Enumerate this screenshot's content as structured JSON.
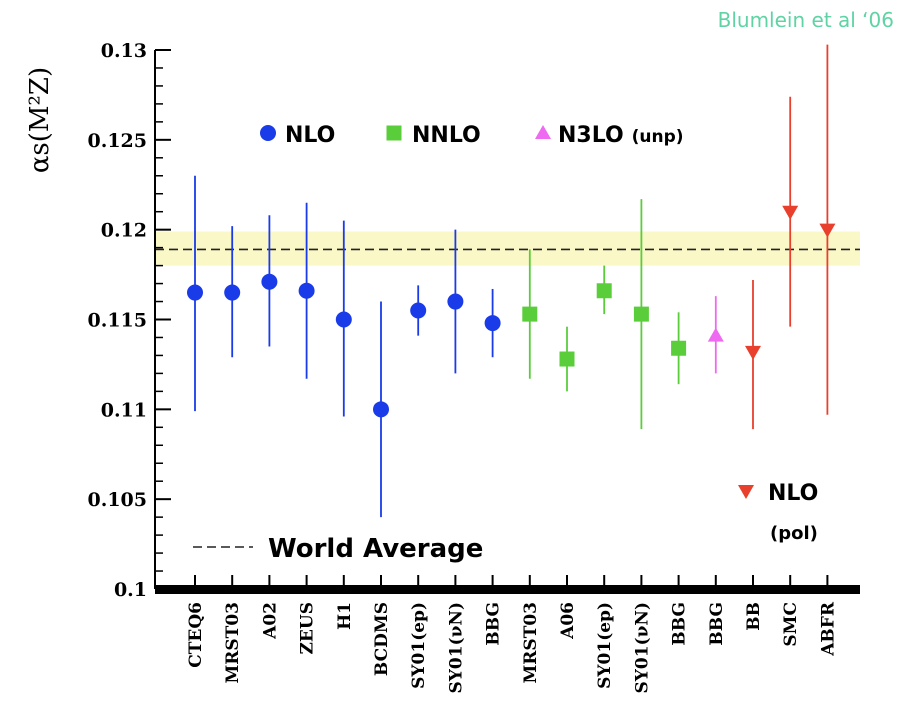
{
  "credit": "Blumlein et al ‘06",
  "chart_data": {
    "type": "scatter",
    "ylabel": "αs(M²Z)",
    "ylim": [
      0.1,
      0.13
    ],
    "yticks": [
      "0.1",
      "0.105",
      "0.11",
      "0.115",
      "0.12",
      "0.125",
      "0.13"
    ],
    "categories": [
      "CTEQ6",
      "MRST03",
      "A02",
      "ZEUS",
      "H1",
      "BCDMS",
      "SY01(ep)",
      "SY01(νN)",
      "BBG",
      "MRST03",
      "A06",
      "SY01(ep)",
      "SY01(νN)",
      "BBG",
      "BBG",
      "BB",
      "SMC",
      "ABFR"
    ],
    "world_average": {
      "label": "World Average",
      "value": 0.1189,
      "band": [
        0.118,
        0.1199
      ]
    },
    "series": [
      {
        "name": "NLO",
        "color": "#1a3be8",
        "marker": "circle",
        "points": [
          {
            "cat": 0,
            "y": 0.1165,
            "lo": 0.1099,
            "hi": 0.123
          },
          {
            "cat": 1,
            "y": 0.1165,
            "lo": 0.1129,
            "hi": 0.1202
          },
          {
            "cat": 2,
            "y": 0.1171,
            "lo": 0.1135,
            "hi": 0.1208
          },
          {
            "cat": 3,
            "y": 0.1166,
            "lo": 0.1117,
            "hi": 0.1215
          },
          {
            "cat": 4,
            "y": 0.115,
            "lo": 0.1096,
            "hi": 0.1205
          },
          {
            "cat": 5,
            "y": 0.11,
            "lo": 0.104,
            "hi": 0.116
          },
          {
            "cat": 6,
            "y": 0.1155,
            "lo": 0.1141,
            "hi": 0.1169
          },
          {
            "cat": 7,
            "y": 0.116,
            "lo": 0.112,
            "hi": 0.12
          },
          {
            "cat": 8,
            "y": 0.1148,
            "lo": 0.1129,
            "hi": 0.1167
          }
        ]
      },
      {
        "name": "NNLO",
        "color": "#5acd3a",
        "marker": "square",
        "points": [
          {
            "cat": 9,
            "y": 0.1153,
            "lo": 0.1117,
            "hi": 0.1189
          },
          {
            "cat": 10,
            "y": 0.1128,
            "lo": 0.111,
            "hi": 0.1146
          },
          {
            "cat": 11,
            "y": 0.1166,
            "lo": 0.1153,
            "hi": 0.118
          },
          {
            "cat": 12,
            "y": 0.1153,
            "lo": 0.1089,
            "hi": 0.1217
          },
          {
            "cat": 13,
            "y": 0.1134,
            "lo": 0.1114,
            "hi": 0.1154
          }
        ]
      },
      {
        "name": "N3LO (unp)",
        "color": "#ee6af0",
        "marker": "triangle-up",
        "points": [
          {
            "cat": 14,
            "y": 0.1141,
            "lo": 0.112,
            "hi": 0.1163
          }
        ]
      },
      {
        "name": "NLO (pol)",
        "color": "#e8402c",
        "marker": "triangle-down",
        "points": [
          {
            "cat": 15,
            "y": 0.1132,
            "lo": 0.1089,
            "hi": 0.1172
          },
          {
            "cat": 16,
            "y": 0.121,
            "lo": 0.1146,
            "hi": 0.1274
          },
          {
            "cat": 17,
            "y": 0.12,
            "lo": 0.1097,
            "hi": 0.1303
          }
        ]
      }
    ]
  }
}
